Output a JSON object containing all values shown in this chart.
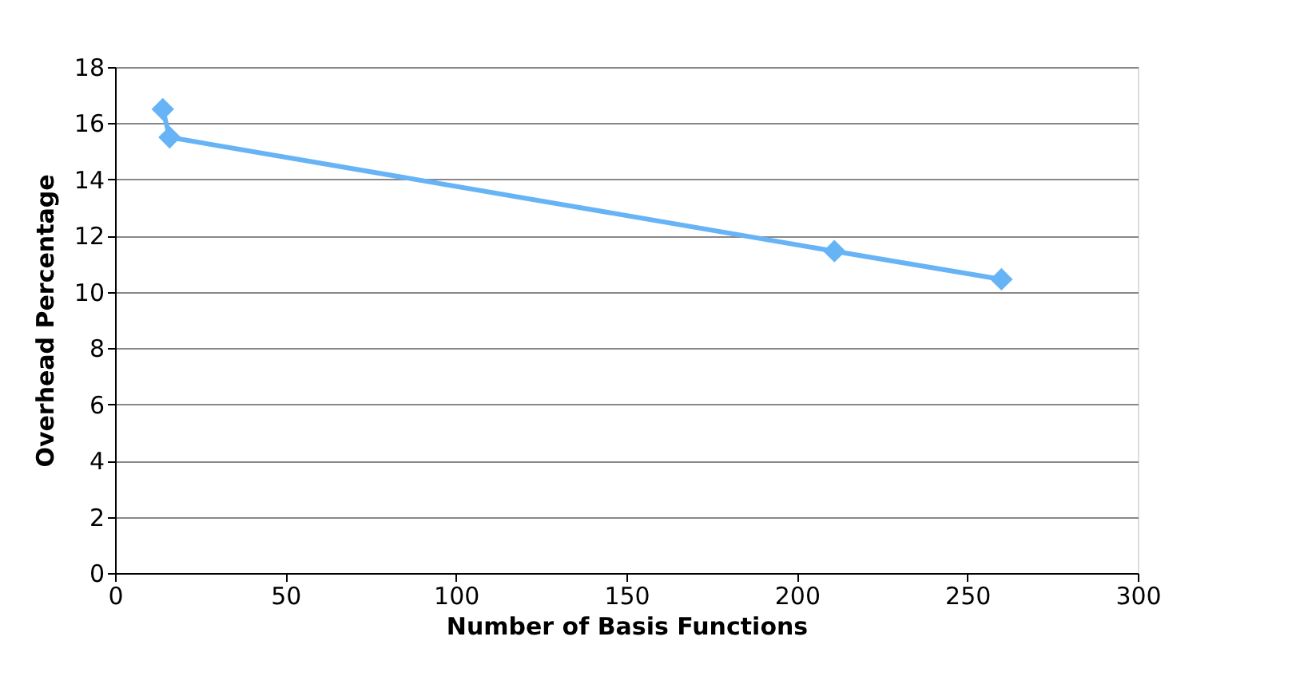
{
  "chart_data": {
    "type": "line",
    "xlabel": "Number of Basis Functions",
    "ylabel": "Overhead Percentage",
    "x": [
      14,
      16,
      211,
      260
    ],
    "series": [
      {
        "color": "#66b3f5",
        "values": [
          16.5,
          15.5,
          11.45,
          10.45
        ]
      }
    ],
    "xlim": [
      0,
      300
    ],
    "xticks": [
      0,
      50,
      100,
      150,
      200,
      250,
      300
    ],
    "ylim": [
      0,
      18
    ],
    "yticks": [
      0,
      2,
      4,
      6,
      8,
      10,
      12,
      14,
      16,
      18
    ],
    "grid": "y",
    "marker": "diamond",
    "line_style": "solid"
  }
}
